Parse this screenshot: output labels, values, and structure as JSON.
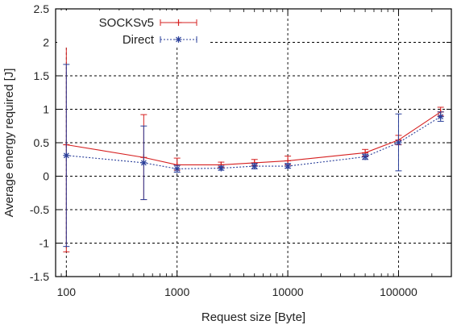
{
  "chart_data": {
    "type": "line",
    "xlabel": "Request size [Byte]",
    "ylabel": "Average energy required [J]",
    "x_scale": "log",
    "xlim": [
      80,
      300000
    ],
    "ylim": [
      -1.5,
      2.5
    ],
    "grid": true,
    "legend_position": "top-left",
    "x_ticks": [
      {
        "value": 100,
        "label": "100"
      },
      {
        "value": 1000,
        "label": "1000"
      },
      {
        "value": 10000,
        "label": "10000"
      },
      {
        "value": 100000,
        "label": "100000"
      }
    ],
    "y_ticks": [
      {
        "value": 2.5,
        "label": "2.5"
      },
      {
        "value": 2,
        "label": "2"
      },
      {
        "value": 1.5,
        "label": "1.5"
      },
      {
        "value": 1,
        "label": "1"
      },
      {
        "value": 0.5,
        "label": "0.5"
      },
      {
        "value": 0,
        "label": "0"
      },
      {
        "value": -0.5,
        "label": "-0.5"
      },
      {
        "value": -1,
        "label": "-1"
      },
      {
        "value": -1.5,
        "label": "-1.5"
      }
    ],
    "series": [
      {
        "name": "SOCKSv5",
        "color": "#d62020",
        "style": "solid",
        "marker": "plus",
        "points": [
          {
            "x": 100,
            "y": 0.47,
            "lo": -1.13,
            "hi": 2.08
          },
          {
            "x": 500,
            "y": 0.28,
            "lo": -0.35,
            "hi": 0.92
          },
          {
            "x": 1000,
            "y": 0.17,
            "lo": 0.09,
            "hi": 0.27
          },
          {
            "x": 2500,
            "y": 0.17,
            "lo": 0.13,
            "hi": 0.21
          },
          {
            "x": 5000,
            "y": 0.2,
            "lo": 0.16,
            "hi": 0.25
          },
          {
            "x": 10000,
            "y": 0.23,
            "lo": 0.17,
            "hi": 0.3
          },
          {
            "x": 50000,
            "y": 0.35,
            "lo": 0.3,
            "hi": 0.4
          },
          {
            "x": 100000,
            "y": 0.54,
            "lo": 0.47,
            "hi": 0.61
          },
          {
            "x": 240000,
            "y": 0.96,
            "lo": 0.9,
            "hi": 1.03
          }
        ]
      },
      {
        "name": "Direct",
        "color": "#2a3f9a",
        "style": "dotted",
        "marker": "star",
        "points": [
          {
            "x": 100,
            "y": 0.31,
            "lo": -1.05,
            "hi": 1.67
          },
          {
            "x": 500,
            "y": 0.2,
            "lo": -0.35,
            "hi": 0.75
          },
          {
            "x": 1000,
            "y": 0.11,
            "lo": 0.06,
            "hi": 0.16
          },
          {
            "x": 2500,
            "y": 0.12,
            "lo": 0.09,
            "hi": 0.15
          },
          {
            "x": 5000,
            "y": 0.15,
            "lo": 0.11,
            "hi": 0.19
          },
          {
            "x": 10000,
            "y": 0.15,
            "lo": 0.12,
            "hi": 0.19
          },
          {
            "x": 50000,
            "y": 0.29,
            "lo": 0.25,
            "hi": 0.33
          },
          {
            "x": 100000,
            "y": 0.5,
            "lo": 0.08,
            "hi": 0.93
          },
          {
            "x": 240000,
            "y": 0.89,
            "lo": 0.82,
            "hi": 0.96
          }
        ]
      }
    ]
  }
}
